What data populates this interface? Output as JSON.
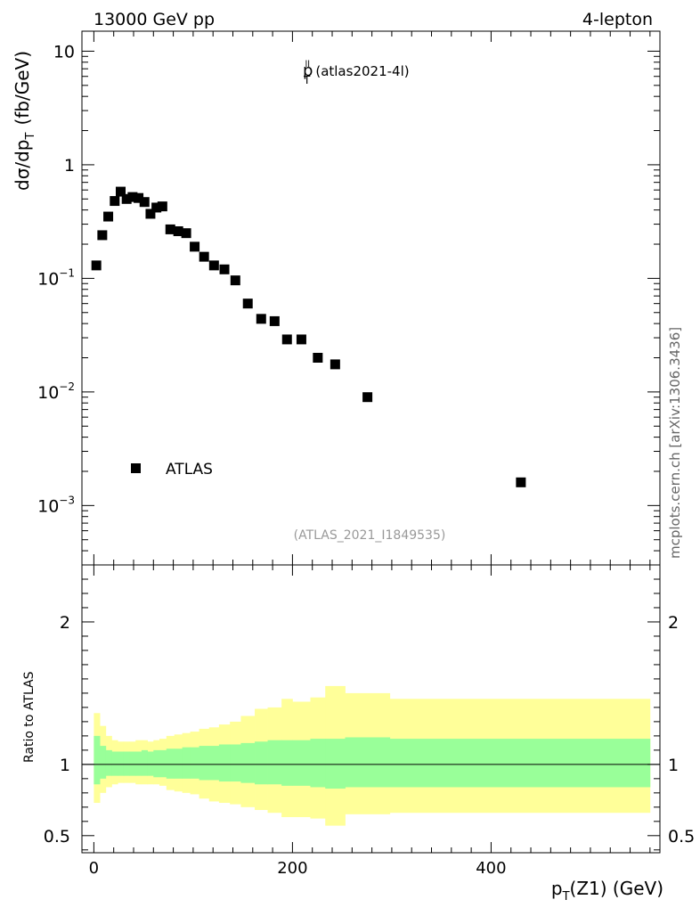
{
  "header": {
    "energy_label": "13000 GeV pp",
    "channel_label": "4-lepton"
  },
  "side_label": "mcplots.cern.ch [arXiv:1306.3436]",
  "analysis_id": "(ATLAS_2021_I1849535)",
  "chart_data": [
    {
      "type": "scatter",
      "title": "p",
      "title_superscript": "ll",
      "title_subscript": "T",
      "title_suffix": "(atlas2021-4l)",
      "yscale": "log",
      "ylabel": "dσ/dp",
      "ylabel_subscript": "T",
      "ylabel_unit": "(fb/GeV)",
      "xlim": [
        -12,
        570
      ],
      "ylim": [
        0.0003,
        15
      ],
      "x_ticks": [
        0,
        200,
        400
      ],
      "y_ticks": [
        {
          "value": 10,
          "label": "10"
        },
        {
          "value": 1,
          "label": "1"
        },
        {
          "value": 0.1,
          "base": "10",
          "exp": "−1"
        },
        {
          "value": 0.01,
          "base": "10",
          "exp": "−2"
        },
        {
          "value": 0.001,
          "base": "10",
          "exp": "−3"
        }
      ],
      "legend": {
        "position": "bottom-left",
        "entries": [
          "ATLAS"
        ]
      },
      "series": [
        {
          "name": "ATLAS",
          "marker": "square",
          "color": "#000000",
          "x": [
            2.5,
            8.5,
            14.5,
            21,
            27,
            33,
            39,
            45,
            51,
            57,
            63,
            69,
            77,
            85,
            93,
            101.5,
            111,
            121,
            131.5,
            142.5,
            155,
            168.5,
            182,
            194.5,
            209,
            225.5,
            243,
            275.5,
            430
          ],
          "y": [
            0.13,
            0.24,
            0.35,
            0.48,
            0.58,
            0.5,
            0.52,
            0.51,
            0.47,
            0.37,
            0.42,
            0.43,
            0.27,
            0.26,
            0.25,
            0.19,
            0.155,
            0.13,
            0.12,
            0.096,
            0.06,
            0.044,
            0.042,
            0.029,
            0.029,
            0.02,
            0.0175,
            0.009,
            0.0016
          ]
        }
      ]
    },
    {
      "type": "area",
      "ylabel": "Ratio to ATLAS",
      "xlabel": "p",
      "xlabel_subscript": "T",
      "xlabel_suffix": "(Z1) (GeV)",
      "xlim": [
        -12,
        570
      ],
      "ylim": [
        0.38,
        2.4
      ],
      "x_ticks": [
        0,
        200,
        400
      ],
      "y_ticks": [
        {
          "value": 2,
          "label": "2"
        },
        {
          "value": 1,
          "label": "1"
        },
        {
          "value": 0.5,
          "label": "0.5"
        }
      ],
      "reference_line": 1,
      "band_edges": [
        0,
        6,
        12,
        18,
        24,
        30,
        36,
        42,
        48,
        54,
        60,
        66,
        73,
        81,
        89,
        97,
        106,
        116,
        126,
        137,
        148,
        162,
        175,
        189,
        200,
        218,
        233,
        253,
        298,
        560
      ],
      "bands": [
        {
          "name": "inner",
          "color": "#99ff99",
          "upper": [
            1.2,
            1.13,
            1.1,
            1.09,
            1.09,
            1.09,
            1.09,
            1.09,
            1.1,
            1.09,
            1.1,
            1.1,
            1.11,
            1.11,
            1.12,
            1.12,
            1.13,
            1.13,
            1.14,
            1.14,
            1.15,
            1.16,
            1.17,
            1.17,
            1.17,
            1.18,
            1.18,
            1.19,
            1.18
          ],
          "lower": [
            0.86,
            0.9,
            0.92,
            0.92,
            0.92,
            0.92,
            0.92,
            0.92,
            0.92,
            0.92,
            0.91,
            0.91,
            0.9,
            0.9,
            0.9,
            0.9,
            0.89,
            0.89,
            0.88,
            0.88,
            0.87,
            0.86,
            0.86,
            0.85,
            0.85,
            0.84,
            0.83,
            0.84,
            0.84
          ]
        },
        {
          "name": "outer",
          "color": "#ffff99",
          "upper": [
            1.36,
            1.27,
            1.2,
            1.17,
            1.16,
            1.16,
            1.16,
            1.17,
            1.17,
            1.16,
            1.17,
            1.18,
            1.2,
            1.21,
            1.22,
            1.23,
            1.25,
            1.26,
            1.28,
            1.3,
            1.34,
            1.39,
            1.4,
            1.46,
            1.44,
            1.47,
            1.55,
            1.5,
            1.46
          ],
          "lower": [
            0.73,
            0.8,
            0.84,
            0.86,
            0.87,
            0.87,
            0.87,
            0.86,
            0.86,
            0.86,
            0.86,
            0.85,
            0.82,
            0.81,
            0.8,
            0.79,
            0.76,
            0.74,
            0.73,
            0.72,
            0.7,
            0.68,
            0.66,
            0.63,
            0.63,
            0.62,
            0.57,
            0.65,
            0.66
          ]
        }
      ]
    }
  ]
}
